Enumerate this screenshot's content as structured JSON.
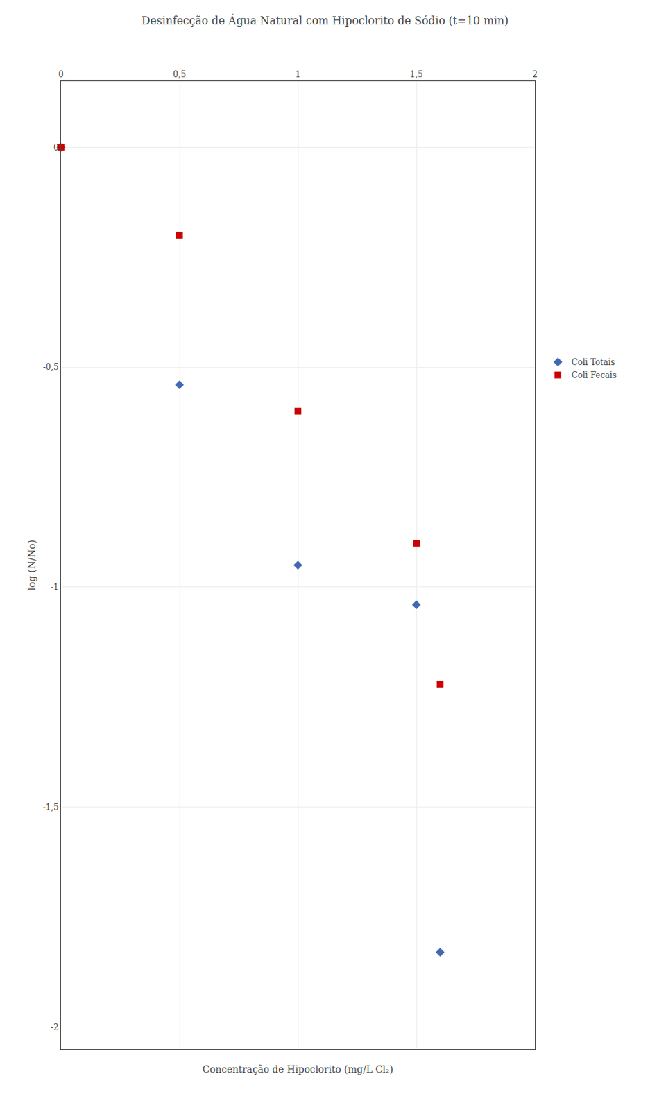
{
  "chart_data": {
    "type": "scatter",
    "title": "Desinfecção de Água Natural com Hipoclorito de Sódio (t=10 min)",
    "xlabel": "Concentração de Hipoclorito (mg/L Cl₂)",
    "ylabel": "log (N/No)",
    "x": [
      0,
      0.5,
      1.0,
      1.5,
      1.6
    ],
    "series": [
      {
        "name": "Coli Totais",
        "color": "#4169B0",
        "marker": "diamond",
        "values": [
          0,
          -0.54,
          -0.95,
          -1.04,
          -1.83
        ]
      },
      {
        "name": "Coli Fecais",
        "color": "#CC0000",
        "marker": "square",
        "values": [
          0,
          -0.2,
          -0.6,
          -0.9,
          -1.22
        ]
      }
    ],
    "xlim": [
      0,
      2
    ],
    "ylim": [
      -2.05,
      0.15
    ],
    "xticks": [
      0,
      {
        "value": 0.5,
        "label": "0,5"
      },
      1,
      {
        "value": 1.5,
        "label": "1,5"
      },
      2
    ],
    "yticks": [
      0,
      {
        "value": -0.5,
        "label": "-0,5"
      },
      -1,
      {
        "value": -1.5,
        "label": "-1,5"
      },
      -2
    ],
    "grid": true,
    "legend": "right"
  }
}
